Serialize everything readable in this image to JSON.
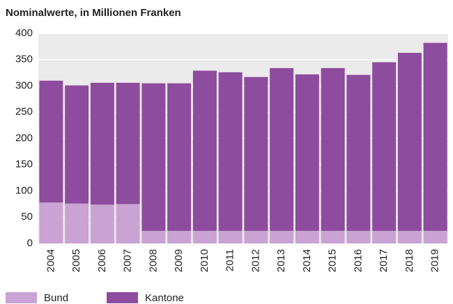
{
  "chart_data": {
    "type": "stacked_bar",
    "title": "Nominalwerte, in Millionen Franken",
    "categories": [
      "2004",
      "2005",
      "2006",
      "2007",
      "2008",
      "2009",
      "2010",
      "2011",
      "2012",
      "2013",
      "2014",
      "2015",
      "2016",
      "2017",
      "2018",
      "2019"
    ],
    "series": [
      {
        "name": "Bund",
        "color": "#c9a3d4",
        "values": [
          78,
          76,
          74,
          75,
          24,
          24,
          24,
          24,
          24,
          24,
          24,
          24,
          24,
          24,
          24,
          24
        ]
      },
      {
        "name": "Kantone",
        "color": "#8e4c9e",
        "values": [
          232,
          225,
          232,
          231,
          281,
          281,
          305,
          302,
          293,
          310,
          298,
          310,
          297,
          321,
          339,
          358
        ]
      }
    ],
    "ylim": [
      0,
      400
    ],
    "yticks": [
      0,
      50,
      100,
      150,
      200,
      250,
      300,
      350,
      400
    ],
    "grid": true
  }
}
